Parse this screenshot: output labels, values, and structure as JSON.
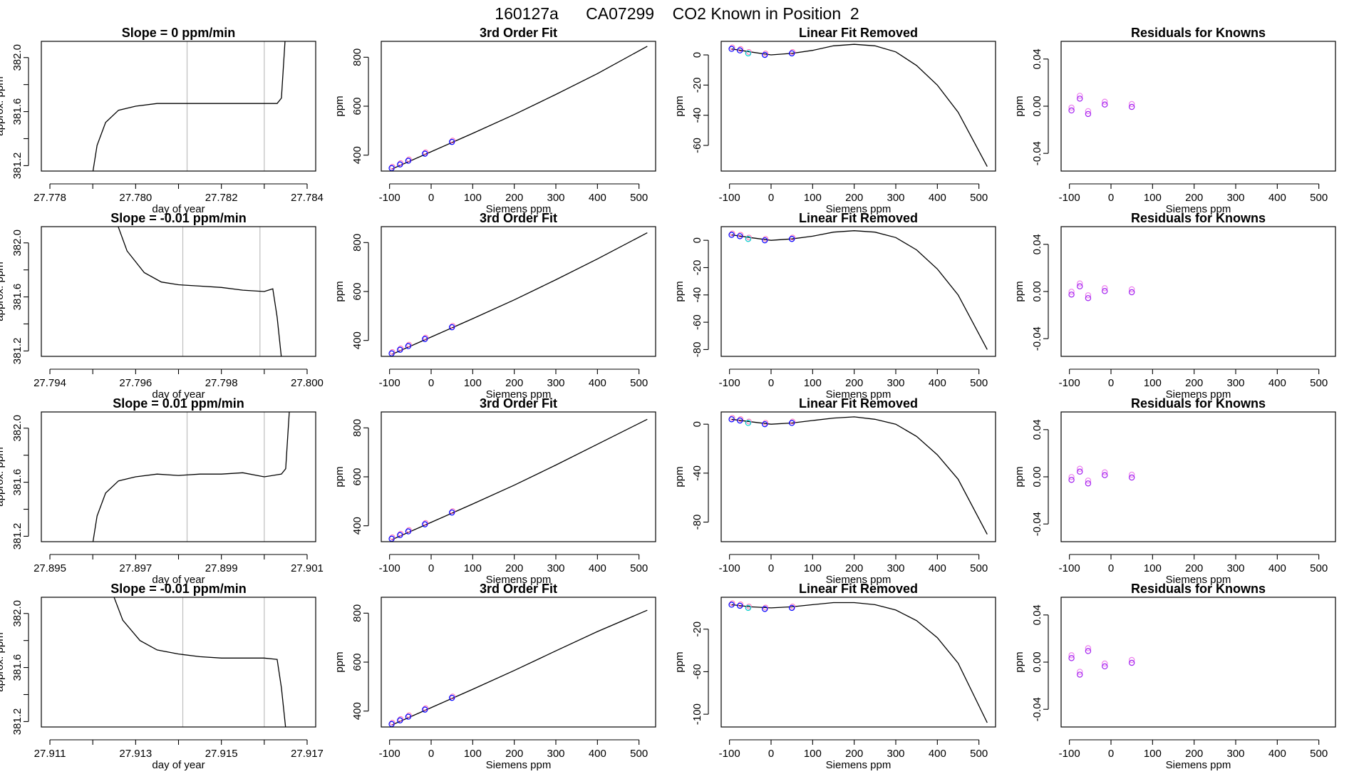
{
  "figure_title": "160127a      CA07299    CO2 Known in Position  2",
  "colors": {
    "line": "#000000",
    "vline": "#bebebe",
    "frame": "#000000",
    "pt_blue": "#0000ff",
    "pt_pink": "#ff69b4",
    "pt_cyan": "#00cdcd",
    "pt_purple": "#a020f0",
    "pt_magenta": "#ee82ee"
  },
  "chart_data": [
    {
      "type": "line",
      "title": "Slope =  0  ppm/min",
      "xlabel": "day of year",
      "ylabel": "approx. ppm",
      "xlim": [
        27.7778,
        27.7842
      ],
      "ylim": [
        381.16,
        382.12
      ],
      "xticks": [
        27.778,
        27.78,
        27.782,
        27.784
      ],
      "xticklabels": [
        "27.778",
        "27.780",
        "27.782",
        "27.784"
      ],
      "yticks": [
        381.2,
        381.6,
        382.0
      ],
      "yticklabels": [
        "381.2",
        "381.6",
        "382.0"
      ],
      "vlines": [
        27.7812,
        27.783
      ],
      "x": [
        27.779,
        27.7791,
        27.7793,
        27.7796,
        27.78,
        27.7805,
        27.781,
        27.7815,
        27.782,
        27.7825,
        27.783,
        27.7833,
        27.7834,
        27.7835
      ],
      "y": [
        381.15,
        381.35,
        381.52,
        381.61,
        381.64,
        381.66,
        381.66,
        381.66,
        381.66,
        381.66,
        381.66,
        381.66,
        381.7,
        382.2
      ]
    },
    {
      "type": "line",
      "title": "3rd Order Fit",
      "xlabel": "Siemens ppm",
      "ylabel": "ppm",
      "xlim": [
        -120,
        540
      ],
      "ylim": [
        335,
        865
      ],
      "xticks": [
        -100,
        0,
        100,
        200,
        300,
        400,
        500
      ],
      "xticklabels": [
        "-100",
        "0",
        "100",
        "200",
        "300",
        "400",
        "500"
      ],
      "yticks": [
        400,
        600,
        800
      ],
      "yticklabels": [
        "400",
        "600",
        "800"
      ],
      "x": [
        -95,
        0,
        100,
        200,
        300,
        400,
        520
      ],
      "y": [
        343,
        414,
        489,
        566,
        648,
        733,
        845
      ],
      "points": [
        {
          "x": -95,
          "y": 347
        },
        {
          "x": -75,
          "y": 362
        },
        {
          "x": -55,
          "y": 377
        },
        {
          "x": -15,
          "y": 406
        },
        {
          "x": 50,
          "y": 454
        }
      ]
    },
    {
      "type": "line",
      "title": "Linear Fit Removed",
      "xlabel": "Siemens ppm",
      "ylabel": "ppm",
      "xlim": [
        -120,
        540
      ],
      "ylim": [
        -77,
        9
      ],
      "xticks": [
        -100,
        0,
        100,
        200,
        300,
        400,
        500
      ],
      "xticklabels": [
        "-100",
        "0",
        "100",
        "200",
        "300",
        "400",
        "500"
      ],
      "yticks": [
        0,
        -20,
        -40,
        -60
      ],
      "yticklabels": [
        "0",
        "-20",
        "-40",
        "-60"
      ],
      "x": [
        -95,
        -50,
        0,
        50,
        100,
        150,
        200,
        250,
        300,
        350,
        400,
        450,
        520
      ],
      "y": [
        4,
        2,
        0,
        1,
        3,
        6,
        7,
        6,
        2,
        -7,
        -20,
        -38,
        -74
      ],
      "points": [
        {
          "x": -95,
          "y": 4
        },
        {
          "x": -75,
          "y": 3
        },
        {
          "x": -55,
          "y": 1
        },
        {
          "x": -15,
          "y": 0
        },
        {
          "x": 50,
          "y": 1
        }
      ]
    },
    {
      "type": "scatter",
      "title": "Residuals for Knowns",
      "xlabel": "Siemens ppm",
      "ylabel": "ppm",
      "xlim": [
        -120,
        540
      ],
      "ylim": [
        -0.055,
        0.055
      ],
      "xticks": [
        -100,
        0,
        100,
        200,
        300,
        400,
        500
      ],
      "xticklabels": [
        "-100",
        "0",
        "100",
        "200",
        "300",
        "400",
        "500"
      ],
      "yticks": [
        -0.04,
        0.0,
        0.04
      ],
      "yticklabels": [
        "-0.04",
        "0.00",
        "0.04"
      ],
      "points": [
        {
          "x": -95,
          "y": -0.003
        },
        {
          "x": -75,
          "y": 0.007
        },
        {
          "x": -55,
          "y": -0.006
        },
        {
          "x": -15,
          "y": 0.002
        },
        {
          "x": 50,
          "y": 0.0
        }
      ]
    },
    {
      "type": "line",
      "title": "Slope =  -0.01  ppm/min",
      "xlabel": "day of year",
      "ylabel": "approx. ppm",
      "xlim": [
        27.7938,
        27.8002
      ],
      "ylim": [
        381.16,
        382.12
      ],
      "xticks": [
        27.794,
        27.796,
        27.798,
        27.8
      ],
      "xticklabels": [
        "27.794",
        "27.796",
        "27.798",
        "27.800"
      ],
      "yticks": [
        381.2,
        381.6,
        382.0
      ],
      "yticklabels": [
        "381.2",
        "381.6",
        "382.0"
      ],
      "vlines": [
        27.7971,
        27.7989
      ],
      "x": [
        27.7955,
        27.7958,
        27.7962,
        27.7966,
        27.797,
        27.7975,
        27.798,
        27.7985,
        27.799,
        27.7992,
        27.7993,
        27.7994
      ],
      "y": [
        382.2,
        381.94,
        381.78,
        381.71,
        381.69,
        381.68,
        381.67,
        381.65,
        381.64,
        381.66,
        381.45,
        381.15
      ]
    },
    {
      "type": "line",
      "title": "3rd Order Fit",
      "xlabel": "Siemens ppm",
      "ylabel": "ppm",
      "xlim": [
        -120,
        540
      ],
      "ylim": [
        335,
        865
      ],
      "xticks": [
        -100,
        0,
        100,
        200,
        300,
        400,
        500
      ],
      "xticklabels": [
        "-100",
        "0",
        "100",
        "200",
        "300",
        "400",
        "500"
      ],
      "yticks": [
        400,
        600,
        800
      ],
      "yticklabels": [
        "400",
        "600",
        "800"
      ],
      "x": [
        -95,
        0,
        100,
        200,
        300,
        400,
        520
      ],
      "y": [
        343,
        414,
        489,
        566,
        648,
        733,
        840
      ],
      "points": [
        {
          "x": -95,
          "y": 347
        },
        {
          "x": -75,
          "y": 362
        },
        {
          "x": -55,
          "y": 377
        },
        {
          "x": -15,
          "y": 406
        },
        {
          "x": 50,
          "y": 454
        }
      ]
    },
    {
      "type": "line",
      "title": "Linear Fit Removed",
      "xlabel": "Siemens ppm",
      "ylabel": "ppm",
      "xlim": [
        -120,
        540
      ],
      "ylim": [
        -85,
        10
      ],
      "xticks": [
        -100,
        0,
        100,
        200,
        300,
        400,
        500
      ],
      "xticklabels": [
        "-100",
        "0",
        "100",
        "200",
        "300",
        "400",
        "500"
      ],
      "yticks": [
        0,
        -20,
        -40,
        -60,
        -80
      ],
      "yticklabels": [
        "0",
        "-20",
        "-40",
        "-60",
        "-80"
      ],
      "x": [
        -95,
        -50,
        0,
        50,
        100,
        150,
        200,
        250,
        300,
        350,
        400,
        450,
        520
      ],
      "y": [
        4,
        2,
        0,
        1,
        3,
        6,
        7,
        6,
        2,
        -7,
        -21,
        -40,
        -80
      ],
      "points": [
        {
          "x": -95,
          "y": 4
        },
        {
          "x": -75,
          "y": 3
        },
        {
          "x": -55,
          "y": 1
        },
        {
          "x": -15,
          "y": 0
        },
        {
          "x": 50,
          "y": 1
        }
      ]
    },
    {
      "type": "scatter",
      "title": "Residuals for Knowns",
      "xlabel": "Siemens ppm",
      "ylabel": "ppm",
      "xlim": [
        -120,
        540
      ],
      "ylim": [
        -0.055,
        0.055
      ],
      "xticks": [
        -100,
        0,
        100,
        200,
        300,
        400,
        500
      ],
      "xticklabels": [
        "-100",
        "0",
        "100",
        "200",
        "300",
        "400",
        "500"
      ],
      "yticks": [
        -0.04,
        0.0,
        0.04
      ],
      "yticklabels": [
        "-0.04",
        "0.00",
        "0.04"
      ],
      "points": [
        {
          "x": -95,
          "y": -0.002
        },
        {
          "x": -75,
          "y": 0.005
        },
        {
          "x": -55,
          "y": -0.005
        },
        {
          "x": -15,
          "y": 0.001
        },
        {
          "x": 50,
          "y": 0.0
        }
      ]
    },
    {
      "type": "line",
      "title": "Slope =  0.01  ppm/min",
      "xlabel": "day of year",
      "ylabel": "approx. ppm",
      "xlim": [
        27.8948,
        27.9012
      ],
      "ylim": [
        381.16,
        382.12
      ],
      "xticks": [
        27.895,
        27.897,
        27.899,
        27.901
      ],
      "xticklabels": [
        "27.895",
        "27.897",
        "27.899",
        "27.901"
      ],
      "yticks": [
        381.2,
        381.6,
        382.0
      ],
      "yticklabels": [
        "381.2",
        "381.6",
        "382.0"
      ],
      "vlines": [
        27.8982,
        27.9
      ],
      "x": [
        27.896,
        27.8961,
        27.8963,
        27.8966,
        27.897,
        27.8975,
        27.898,
        27.8985,
        27.899,
        27.8995,
        27.9,
        27.9004,
        27.9005,
        27.9006
      ],
      "y": [
        381.15,
        381.35,
        381.52,
        381.61,
        381.64,
        381.66,
        381.65,
        381.66,
        381.66,
        381.67,
        381.64,
        381.66,
        381.7,
        382.2
      ]
    },
    {
      "type": "line",
      "title": "3rd Order Fit",
      "xlabel": "Siemens ppm",
      "ylabel": "ppm",
      "xlim": [
        -120,
        540
      ],
      "ylim": [
        335,
        865
      ],
      "xticks": [
        -100,
        0,
        100,
        200,
        300,
        400,
        500
      ],
      "xticklabels": [
        "-100",
        "0",
        "100",
        "200",
        "300",
        "400",
        "500"
      ],
      "yticks": [
        400,
        600,
        800
      ],
      "yticklabels": [
        "400",
        "600",
        "800"
      ],
      "x": [
        -95,
        0,
        100,
        200,
        300,
        400,
        520
      ],
      "y": [
        343,
        414,
        489,
        566,
        648,
        733,
        835
      ],
      "points": [
        {
          "x": -95,
          "y": 347
        },
        {
          "x": -75,
          "y": 362
        },
        {
          "x": -55,
          "y": 377
        },
        {
          "x": -15,
          "y": 406
        },
        {
          "x": 50,
          "y": 454
        }
      ]
    },
    {
      "type": "line",
      "title": "Linear Fit Removed",
      "xlabel": "Siemens ppm",
      "ylabel": "ppm",
      "xlim": [
        -120,
        540
      ],
      "ylim": [
        -96,
        10
      ],
      "xticks": [
        -100,
        0,
        100,
        200,
        300,
        400,
        500
      ],
      "xticklabels": [
        "-100",
        "0",
        "100",
        "200",
        "300",
        "400",
        "500"
      ],
      "yticks": [
        0,
        -40,
        -80
      ],
      "yticklabels": [
        "0",
        "-40",
        "-80"
      ],
      "x": [
        -95,
        -50,
        0,
        50,
        100,
        150,
        200,
        250,
        300,
        350,
        400,
        450,
        520
      ],
      "y": [
        4,
        2,
        0,
        1,
        3,
        5,
        6,
        4,
        0,
        -10,
        -25,
        -45,
        -90
      ],
      "points": [
        {
          "x": -95,
          "y": 4
        },
        {
          "x": -75,
          "y": 3
        },
        {
          "x": -55,
          "y": 1
        },
        {
          "x": -15,
          "y": 0
        },
        {
          "x": 50,
          "y": 1
        }
      ]
    },
    {
      "type": "scatter",
      "title": "Residuals for Knowns",
      "xlabel": "Siemens ppm",
      "ylabel": "ppm",
      "xlim": [
        -120,
        540
      ],
      "ylim": [
        -0.055,
        0.055
      ],
      "xticks": [
        -100,
        0,
        100,
        200,
        300,
        400,
        500
      ],
      "xticklabels": [
        "-100",
        "0",
        "100",
        "200",
        "300",
        "400",
        "500"
      ],
      "yticks": [
        -0.04,
        0.0,
        0.04
      ],
      "yticklabels": [
        "-0.04",
        "0.00",
        "0.04"
      ],
      "points": [
        {
          "x": -95,
          "y": -0.002
        },
        {
          "x": -75,
          "y": 0.005
        },
        {
          "x": -55,
          "y": -0.005
        },
        {
          "x": -15,
          "y": 0.002
        },
        {
          "x": 50,
          "y": 0.0
        }
      ]
    },
    {
      "type": "line",
      "title": "Slope =  -0.01  ppm/min",
      "xlabel": "day of year",
      "ylabel": "approx. ppm",
      "xlim": [
        27.9108,
        27.9172
      ],
      "ylim": [
        381.16,
        382.12
      ],
      "xticks": [
        27.911,
        27.913,
        27.915,
        27.917
      ],
      "xticklabels": [
        "27.911",
        "27.913",
        "27.915",
        "27.917"
      ],
      "yticks": [
        381.2,
        381.6,
        382.0
      ],
      "yticklabels": [
        "381.2",
        "381.6",
        "382.0"
      ],
      "vlines": [
        27.9141,
        27.916
      ],
      "x": [
        27.9124,
        27.9127,
        27.9131,
        27.9135,
        27.914,
        27.9145,
        27.915,
        27.9155,
        27.916,
        27.9163,
        27.9164,
        27.9165
      ],
      "y": [
        382.2,
        381.95,
        381.8,
        381.73,
        381.7,
        381.68,
        381.67,
        381.67,
        381.67,
        381.66,
        381.45,
        381.15
      ]
    },
    {
      "type": "line",
      "title": "3rd Order Fit",
      "xlabel": "Siemens ppm",
      "ylabel": "ppm",
      "xlim": [
        -120,
        540
      ],
      "ylim": [
        335,
        865
      ],
      "xticks": [
        -100,
        0,
        100,
        200,
        300,
        400,
        500
      ],
      "xticklabels": [
        "-100",
        "0",
        "100",
        "200",
        "300",
        "400",
        "500"
      ],
      "yticks": [
        400,
        600,
        800
      ],
      "yticklabels": [
        "400",
        "600",
        "800"
      ],
      "x": [
        -95,
        0,
        100,
        200,
        300,
        400,
        520
      ],
      "y": [
        343,
        414,
        489,
        566,
        646,
        725,
        812
      ],
      "points": [
        {
          "x": -95,
          "y": 347
        },
        {
          "x": -75,
          "y": 362
        },
        {
          "x": -55,
          "y": 377
        },
        {
          "x": -15,
          "y": 406
        },
        {
          "x": 50,
          "y": 454
        }
      ]
    },
    {
      "type": "line",
      "title": "Linear Fit Removed",
      "xlabel": "Siemens ppm",
      "ylabel": "ppm",
      "xlim": [
        -120,
        540
      ],
      "ylim": [
        -112,
        10
      ],
      "xticks": [
        -100,
        0,
        100,
        200,
        300,
        400,
        500
      ],
      "xticklabels": [
        "-100",
        "0",
        "100",
        "200",
        "300",
        "400",
        "500"
      ],
      "yticks": [
        -20,
        -60,
        -100
      ],
      "yticklabels": [
        "-20",
        "-60",
        "-100"
      ],
      "x": [
        -95,
        -50,
        0,
        50,
        100,
        150,
        200,
        250,
        300,
        350,
        400,
        450,
        520
      ],
      "y": [
        3,
        1,
        0,
        1,
        3,
        5,
        5,
        3,
        -2,
        -12,
        -28,
        -52,
        -108
      ],
      "points": [
        {
          "x": -95,
          "y": 3
        },
        {
          "x": -75,
          "y": 2
        },
        {
          "x": -55,
          "y": 0
        },
        {
          "x": -15,
          "y": -1
        },
        {
          "x": 50,
          "y": 0
        }
      ]
    },
    {
      "type": "scatter",
      "title": "Residuals for Knowns",
      "xlabel": "Siemens ppm",
      "ylabel": "ppm",
      "xlim": [
        -120,
        540
      ],
      "ylim": [
        -0.055,
        0.055
      ],
      "xticks": [
        -100,
        0,
        100,
        200,
        300,
        400,
        500
      ],
      "xticklabels": [
        "-100",
        "0",
        "100",
        "200",
        "300",
        "400",
        "500"
      ],
      "yticks": [
        -0.04,
        0.0,
        0.04
      ],
      "yticklabels": [
        "-0.04",
        "0.00",
        "0.04"
      ],
      "points": [
        {
          "x": -95,
          "y": 0.004
        },
        {
          "x": -75,
          "y": -0.01
        },
        {
          "x": -55,
          "y": 0.01
        },
        {
          "x": -15,
          "y": -0.003
        },
        {
          "x": 50,
          "y": 0.0
        }
      ]
    }
  ]
}
